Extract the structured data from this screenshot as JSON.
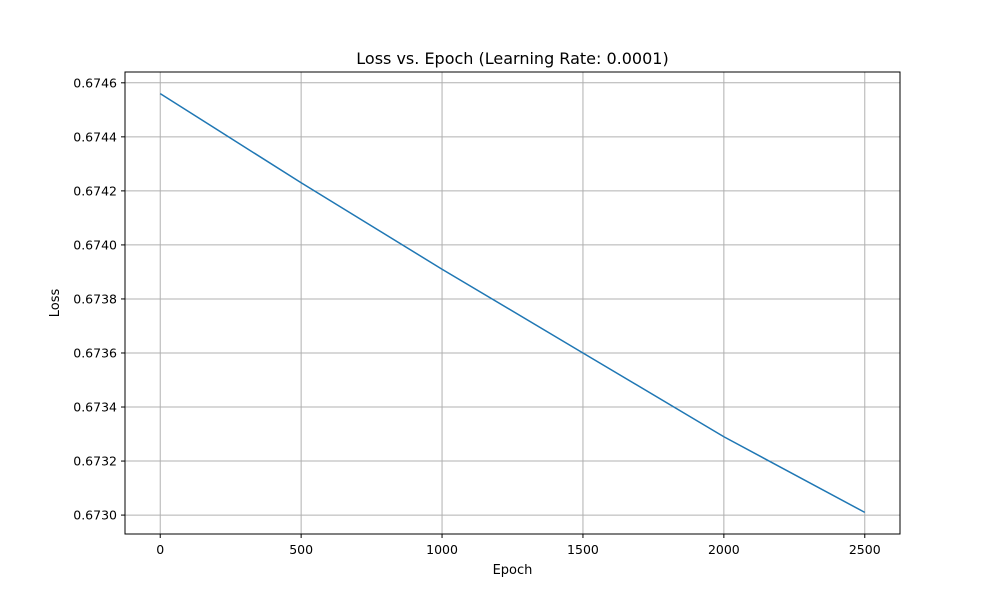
{
  "chart_data": {
    "type": "line",
    "title": "Loss vs. Epoch (Learning Rate: 0.0001)",
    "xlabel": "Epoch",
    "ylabel": "Loss",
    "xlim": [
      -125,
      2625
    ],
    "ylim": [
      0.67293,
      0.67464
    ],
    "xticks": [
      0,
      500,
      1000,
      1500,
      2000,
      2500
    ],
    "xtick_labels": [
      "0",
      "500",
      "1000",
      "1500",
      "2000",
      "2500"
    ],
    "yticks": [
      0.673,
      0.6732,
      0.6734,
      0.6736,
      0.6738,
      0.674,
      0.6742,
      0.6744,
      0.6746
    ],
    "ytick_labels": [
      "0.6730",
      "0.6732",
      "0.6734",
      "0.6736",
      "0.6738",
      "0.6740",
      "0.6742",
      "0.6744",
      "0.6746"
    ],
    "grid": true,
    "series": [
      {
        "color": "#1f77b4",
        "x": [
          0,
          500,
          1000,
          1500,
          2000,
          2500
        ],
        "y": [
          0.67456,
          0.67423,
          0.67391,
          0.6736,
          0.67329,
          0.67301
        ]
      }
    ]
  }
}
